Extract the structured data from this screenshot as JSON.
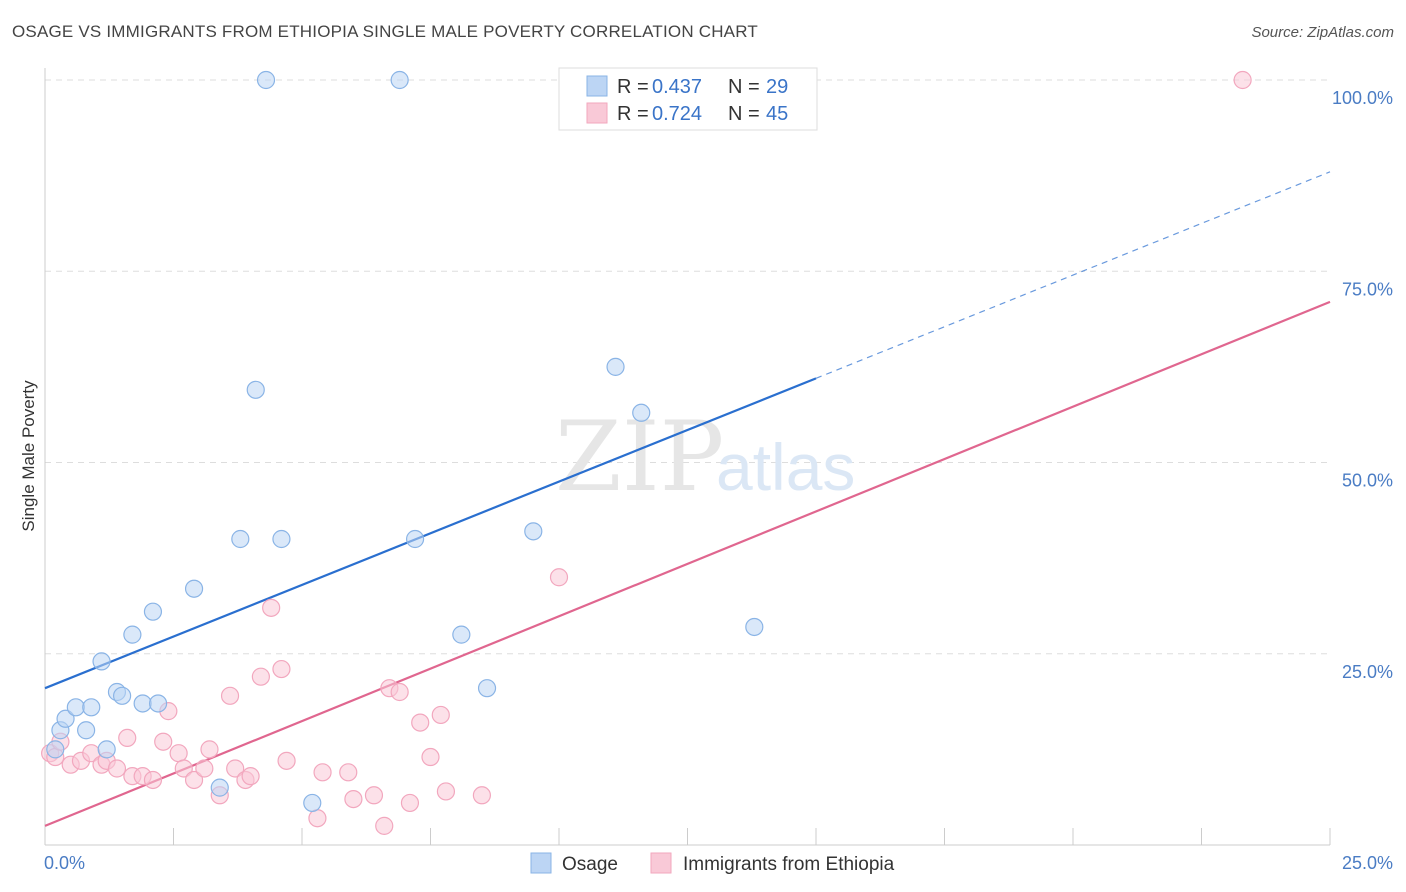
{
  "title": "OSAGE VS IMMIGRANTS FROM ETHIOPIA SINGLE MALE POVERTY CORRELATION CHART",
  "source": "Source: ZipAtlas.com",
  "colors": {
    "osage": "#8ab4e6",
    "osage_line": "#2a6fcf",
    "ethiopia": "#f2a7be",
    "ethiopia_line": "#e0668f",
    "tick": "#4a7cc4",
    "grid": "#dddddd"
  },
  "watermark": {
    "zip": "ZIP",
    "atlas": "atlas"
  },
  "legend": {
    "r_label": "R =",
    "n_label": "N =",
    "entries": [
      {
        "name": "Osage",
        "r": "0.437",
        "n": "29"
      },
      {
        "name": "Immigrants from Ethiopia",
        "r": "0.724",
        "n": "45"
      }
    ]
  },
  "chart_data": {
    "type": "scatter",
    "ylabel": "Single Male Poverty",
    "xlim": [
      0,
      25
    ],
    "ylim": [
      0,
      100
    ],
    "x_tick_labels": [
      "0.0%",
      "25.0%"
    ],
    "y_tick_labels": [
      "25.0%",
      "50.0%",
      "75.0%",
      "100.0%"
    ],
    "y_ticks": [
      25,
      50,
      75,
      100
    ],
    "grid": true,
    "legend_position": "top-center",
    "series": [
      {
        "name": "Osage",
        "points": [
          [
            0.2,
            12.5
          ],
          [
            0.3,
            15
          ],
          [
            0.4,
            16.5
          ],
          [
            0.6,
            18
          ],
          [
            0.9,
            18
          ],
          [
            0.8,
            15
          ],
          [
            1.1,
            24
          ],
          [
            1.2,
            12.5
          ],
          [
            1.4,
            20
          ],
          [
            1.5,
            19.5
          ],
          [
            1.7,
            27.5
          ],
          [
            1.9,
            18.5
          ],
          [
            2.1,
            30.5
          ],
          [
            2.2,
            18.5
          ],
          [
            2.9,
            33.5
          ],
          [
            3.4,
            7.5
          ],
          [
            3.8,
            40
          ],
          [
            4.1,
            59.5
          ],
          [
            4.3,
            100
          ],
          [
            4.6,
            40
          ],
          [
            5.2,
            5.5
          ],
          [
            6.9,
            100
          ],
          [
            7.2,
            40
          ],
          [
            8.1,
            27.5
          ],
          [
            8.6,
            20.5
          ],
          [
            9.5,
            41
          ],
          [
            11.1,
            62.5
          ],
          [
            11.6,
            56.5
          ],
          [
            13.8,
            28.5
          ]
        ],
        "trend": {
          "x": [
            0,
            15
          ],
          "y": [
            20.5,
            61
          ],
          "extended_x": [
            15,
            25
          ],
          "extended_y": [
            61,
            88
          ]
        }
      },
      {
        "name": "Immigrants from Ethiopia",
        "points": [
          [
            0.1,
            12
          ],
          [
            0.2,
            11.5
          ],
          [
            0.3,
            13.5
          ],
          [
            0.5,
            10.5
          ],
          [
            0.7,
            11
          ],
          [
            0.9,
            12
          ],
          [
            1.1,
            10.5
          ],
          [
            1.2,
            11
          ],
          [
            1.4,
            10
          ],
          [
            1.6,
            14
          ],
          [
            1.7,
            9
          ],
          [
            1.9,
            9
          ],
          [
            2.1,
            8.5
          ],
          [
            2.3,
            13.5
          ],
          [
            2.4,
            17.5
          ],
          [
            2.6,
            12
          ],
          [
            2.7,
            10
          ],
          [
            2.9,
            8.5
          ],
          [
            3.1,
            10
          ],
          [
            3.2,
            12.5
          ],
          [
            3.4,
            6.5
          ],
          [
            3.6,
            19.5
          ],
          [
            3.7,
            10
          ],
          [
            3.9,
            8.5
          ],
          [
            4.0,
            9
          ],
          [
            4.2,
            22
          ],
          [
            4.4,
            31
          ],
          [
            4.6,
            23
          ],
          [
            4.7,
            11
          ],
          [
            5.3,
            3.5
          ],
          [
            5.4,
            9.5
          ],
          [
            5.9,
            9.5
          ],
          [
            6.0,
            6
          ],
          [
            6.4,
            6.5
          ],
          [
            6.6,
            2.5
          ],
          [
            6.7,
            20.5
          ],
          [
            6.9,
            20
          ],
          [
            7.1,
            5.5
          ],
          [
            7.3,
            16
          ],
          [
            7.5,
            11.5
          ],
          [
            7.7,
            17
          ],
          [
            7.8,
            7
          ],
          [
            8.5,
            6.5
          ],
          [
            10.0,
            35
          ],
          [
            23.3,
            100
          ]
        ],
        "trend": {
          "x": [
            0,
            25
          ],
          "y": [
            2.5,
            71
          ]
        }
      }
    ]
  }
}
